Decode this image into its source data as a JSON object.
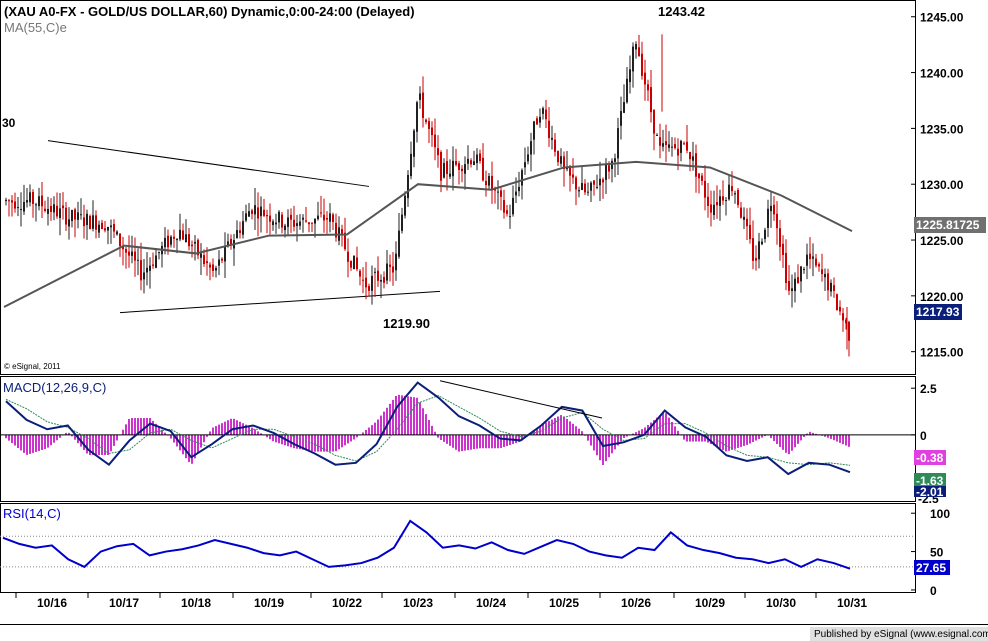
{
  "colors": {
    "up": "#202020",
    "down": "#cc0000",
    "ma": "#555555",
    "macd_line": "#0a1e7a",
    "macd_signal": "#2e8b57",
    "macd_hist": "#cc33cc",
    "rsi_line": "#0000cc",
    "tag_ma": "#707070",
    "tag_price": "#0a1e7a",
    "tag_macd_hist": "#e040e0",
    "tag_macd_signal": "#2e8b57",
    "tag_macd_line": "#0a1e7a",
    "tag_rsi": "#0000cc"
  },
  "chart_data": {
    "type": "candlestick",
    "title": "(XAU A0-FX - GOLD/US DOLLAR,60) Dynamic,0:00-24:00 (Delayed)",
    "ma_label": "MA(55,C)e",
    "left_partial_label": "30",
    "copyright": "© eSignal, 2011",
    "x_tick_labels": [
      "10/16",
      "10/17",
      "10/18",
      "10/19",
      "10/22",
      "10/23",
      "10/24",
      "10/25",
      "10/26",
      "10/29",
      "10/30",
      "10/31"
    ],
    "price_panel": {
      "ylim": [
        1213,
        1246.5
      ],
      "yticks": [
        "1245.00",
        "1240.00",
        "1235.00",
        "1230.00",
        "1225.00",
        "1220.00",
        "1215.00"
      ],
      "annotations": [
        "1243.42",
        "1219.90"
      ],
      "ma_value_tag": "1225.81725",
      "last_price_tag": "1217.93",
      "trendlines": [
        {
          "from": [
            "10/16",
            1233.9
          ],
          "to": [
            "10/22",
            1229.8
          ]
        },
        {
          "from": [
            "10/17",
            1218.5
          ],
          "to": [
            "10/23",
            1220.4
          ]
        }
      ],
      "close_path": [
        {
          "x": "10/16",
          "close": 1228.5
        },
        {
          "x": "10/16",
          "close": 1227.0
        },
        {
          "x": "10/17",
          "close": 1226.5
        },
        {
          "x": "10/17",
          "close": 1222.0
        },
        {
          "x": "10/18",
          "close": 1226.0
        },
        {
          "x": "10/18",
          "close": 1222.0
        },
        {
          "x": "10/19",
          "close": 1228.0
        },
        {
          "x": "10/19",
          "close": 1226.5
        },
        {
          "x": "10/22",
          "close": 1227.0
        },
        {
          "x": "10/22",
          "close": 1221.0
        },
        {
          "x": "10/23",
          "close": 1222.5
        },
        {
          "x": "10/23",
          "close": 1238.0
        },
        {
          "x": "10/23",
          "close": 1231.0
        },
        {
          "x": "10/24",
          "close": 1232.5
        },
        {
          "x": "10/24",
          "close": 1227.0
        },
        {
          "x": "10/25",
          "close": 1237.0
        },
        {
          "x": "10/25",
          "close": 1231.0
        },
        {
          "x": "10/25",
          "close": 1229.0
        },
        {
          "x": "10/26",
          "close": 1232.0
        },
        {
          "x": "10/26",
          "close": 1243.0
        },
        {
          "x": "10/26",
          "close": 1233.0
        },
        {
          "x": "10/29",
          "close": 1233.5
        },
        {
          "x": "10/29",
          "close": 1228.0
        },
        {
          "x": "10/29",
          "close": 1230.0
        },
        {
          "x": "10/30",
          "close": 1223.0
        },
        {
          "x": "10/30",
          "close": 1229.0
        },
        {
          "x": "10/30",
          "close": 1220.0
        },
        {
          "x": "10/30",
          "close": 1223.5
        },
        {
          "x": "10/31",
          "close": 1221.0
        },
        {
          "x": "10/31",
          "close": 1216.0
        },
        {
          "x": "10/31",
          "close": 1217.93
        }
      ],
      "ma_path": [
        {
          "x": "10/16",
          "value": 1219.0
        },
        {
          "x": "10/17",
          "value": 1224.5
        },
        {
          "x": "10/18",
          "value": 1223.8
        },
        {
          "x": "10/19",
          "value": 1225.4
        },
        {
          "x": "10/22",
          "value": 1225.5
        },
        {
          "x": "10/23",
          "value": 1230.0
        },
        {
          "x": "10/24",
          "value": 1229.5
        },
        {
          "x": "10/25",
          "value": 1231.5
        },
        {
          "x": "10/26",
          "value": 1232.0
        },
        {
          "x": "10/29",
          "value": 1231.5
        },
        {
          "x": "10/30",
          "value": 1229.0
        },
        {
          "x": "10/31",
          "value": 1225.8
        }
      ]
    },
    "macd_panel": {
      "label": "MACD(12,26,9,C)",
      "ylim": [
        -3.6,
        3.1
      ],
      "yticks": [
        "2.5",
        "0"
      ],
      "value_tags": [
        "-0.38",
        "-1.63",
        "-2.01"
      ],
      "partial_tick": "-2.5",
      "trendline": {
        "from": [
          "10/23",
          2.9
        ],
        "to": [
          "10/25",
          0.9
        ]
      },
      "macd_path": [
        1.8,
        0.8,
        0.3,
        0.5,
        -0.8,
        -1.6,
        -0.3,
        0.6,
        0.2,
        -1.2,
        -0.5,
        0.3,
        0.5,
        0.1,
        -0.5,
        -1.0,
        -1.6,
        -1.5,
        -0.5,
        1.5,
        2.8,
        2.0,
        1.0,
        0.5,
        -0.2,
        -0.3,
        0.5,
        1.5,
        1.3,
        -0.6,
        -0.4,
        0.0,
        1.3,
        0.4,
        -0.1,
        -1.1,
        -1.4,
        -1.2,
        -2.1,
        -1.5,
        -1.6,
        -2.0
      ],
      "signal_path": [
        1.9,
        1.4,
        0.7,
        0.4,
        -0.2,
        -1.0,
        -0.8,
        0.1,
        0.3,
        -0.3,
        -0.7,
        -0.2,
        0.3,
        0.3,
        -0.1,
        -0.5,
        -1.1,
        -1.4,
        -0.9,
        0.3,
        1.7,
        2.1,
        1.5,
        0.9,
        0.2,
        -0.1,
        0.2,
        0.9,
        1.2,
        0.3,
        -0.3,
        -0.2,
        0.6,
        0.6,
        0.1,
        -0.6,
        -1.1,
        -1.2,
        -1.5,
        -1.6,
        -1.5,
        -1.63
      ]
    },
    "rsi_panel": {
      "label": "RSI(14,C)",
      "ylim": [
        -4,
        112
      ],
      "yticks": [
        "100",
        "50",
        "0"
      ],
      "value_tag": "27.65",
      "guide_levels": [
        70,
        30
      ],
      "rsi_path": [
        68,
        60,
        55,
        58,
        40,
        30,
        50,
        57,
        60,
        45,
        50,
        53,
        58,
        65,
        60,
        55,
        48,
        45,
        50,
        40,
        30,
        32,
        35,
        42,
        55,
        90,
        75,
        55,
        58,
        54,
        62,
        52,
        47,
        56,
        65,
        60,
        50,
        45,
        42,
        55,
        52,
        75,
        58,
        52,
        48,
        42,
        40,
        35,
        40,
        30,
        40,
        35,
        27.65
      ]
    }
  },
  "footer": {
    "published": "Published by eSignal (www.esignal.com)"
  }
}
